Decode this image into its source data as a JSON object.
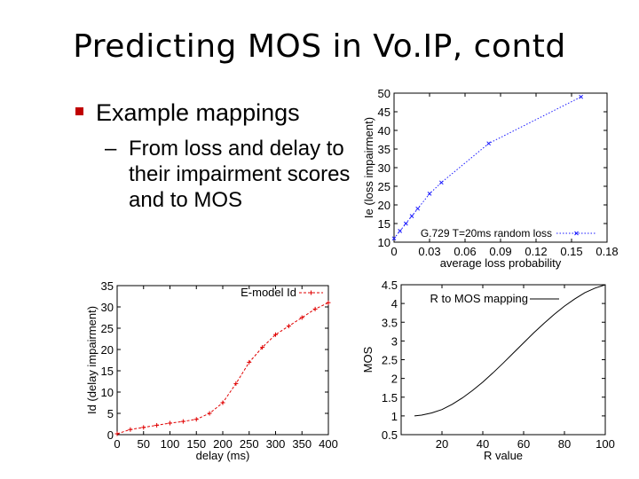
{
  "slide": {
    "title": "Predicting MOS in Vo.IP, contd",
    "bullet": "Example mappings",
    "subbullet": {
      "dash": "–",
      "text": "From loss and delay to their impairment scores and to MOS"
    },
    "colors": {
      "bullet_marker": "#c00000",
      "loss_series": "#1a1aff",
      "delay_series": "#e00000",
      "mos_series": "#000000"
    }
  },
  "chart_data": [
    {
      "id": "loss",
      "type": "line",
      "title": "",
      "xlabel": "average loss probability",
      "ylabel": "Ie (loss impairment)",
      "xlim": [
        0,
        0.18
      ],
      "ylim": [
        10,
        50
      ],
      "xticks": [
        0,
        0.03,
        0.06,
        0.09,
        0.12,
        0.15,
        0.18
      ],
      "xtick_labels": [
        "0",
        "0.03",
        "0.06",
        "0.09",
        "0.12",
        "0.15",
        "0.18"
      ],
      "yticks": [
        10,
        15,
        20,
        25,
        30,
        35,
        40,
        45,
        50
      ],
      "ytick_labels": [
        "10",
        "15",
        "20",
        "25",
        "30",
        "35",
        "40",
        "45",
        "50"
      ],
      "legend_position": "bottom-right",
      "series": [
        {
          "name": "G.729 T=20ms random loss",
          "style": "dotted",
          "marker": "x",
          "x": [
            0,
            0.005,
            0.01,
            0.015,
            0.02,
            0.03,
            0.04,
            0.08,
            0.158
          ],
          "y": [
            11,
            13,
            15,
            17,
            19,
            23,
            26,
            36.5,
            49
          ]
        }
      ]
    },
    {
      "id": "delay",
      "type": "line",
      "title": "",
      "xlabel": "delay (ms)",
      "ylabel": "Id (delay impairment)",
      "xlim": [
        0,
        400
      ],
      "ylim": [
        0,
        35
      ],
      "xticks": [
        0,
        50,
        100,
        150,
        200,
        250,
        300,
        350,
        400
      ],
      "xtick_labels": [
        "0",
        "50",
        "100",
        "150",
        "200",
        "250",
        "300",
        "350",
        "400"
      ],
      "yticks": [
        0,
        5,
        10,
        15,
        20,
        25,
        30,
        35
      ],
      "ytick_labels": [
        "0",
        "5",
        "10",
        "15",
        "20",
        "25",
        "30",
        "35"
      ],
      "legend_position": "top-right",
      "series": [
        {
          "name": "E-model Id",
          "style": "dashed",
          "marker": "+",
          "x": [
            0,
            25,
            50,
            75,
            100,
            125,
            150,
            175,
            200,
            225,
            250,
            275,
            300,
            325,
            350,
            375,
            400
          ],
          "y": [
            0.2,
            1.2,
            1.7,
            2.2,
            2.7,
            3.1,
            3.6,
            5,
            7.5,
            12,
            17,
            20.5,
            23.5,
            25.5,
            27.5,
            29.5,
            31
          ]
        }
      ]
    },
    {
      "id": "mos",
      "type": "line",
      "title": "",
      "xlabel": "R value",
      "ylabel": "MOS",
      "xlim": [
        0,
        100
      ],
      "ylim": [
        0.5,
        4.5
      ],
      "xticks": [
        20,
        40,
        60,
        80,
        100
      ],
      "xtick_labels": [
        "20",
        "40",
        "60",
        "80",
        "100"
      ],
      "yticks": [
        0.5,
        1,
        1.5,
        2,
        2.5,
        3,
        3.5,
        4,
        4.5
      ],
      "ytick_labels": [
        "0.5",
        "1",
        "1.5",
        "2",
        "2.5",
        "3",
        "3.5",
        "4",
        "4.5"
      ],
      "legend_position": "top-right",
      "series": [
        {
          "name": "R to MOS mapping",
          "style": "solid",
          "marker": "none",
          "x": [
            6.5,
            10,
            15,
            20,
            25,
            30,
            35,
            40,
            45,
            50,
            55,
            60,
            65,
            70,
            75,
            80,
            85,
            90,
            95,
            100
          ],
          "y": [
            1,
            1.02,
            1.08,
            1.17,
            1.31,
            1.48,
            1.68,
            1.9,
            2.15,
            2.41,
            2.68,
            2.95,
            3.22,
            3.47,
            3.71,
            3.93,
            4.12,
            4.29,
            4.41,
            4.5
          ]
        }
      ]
    }
  ]
}
